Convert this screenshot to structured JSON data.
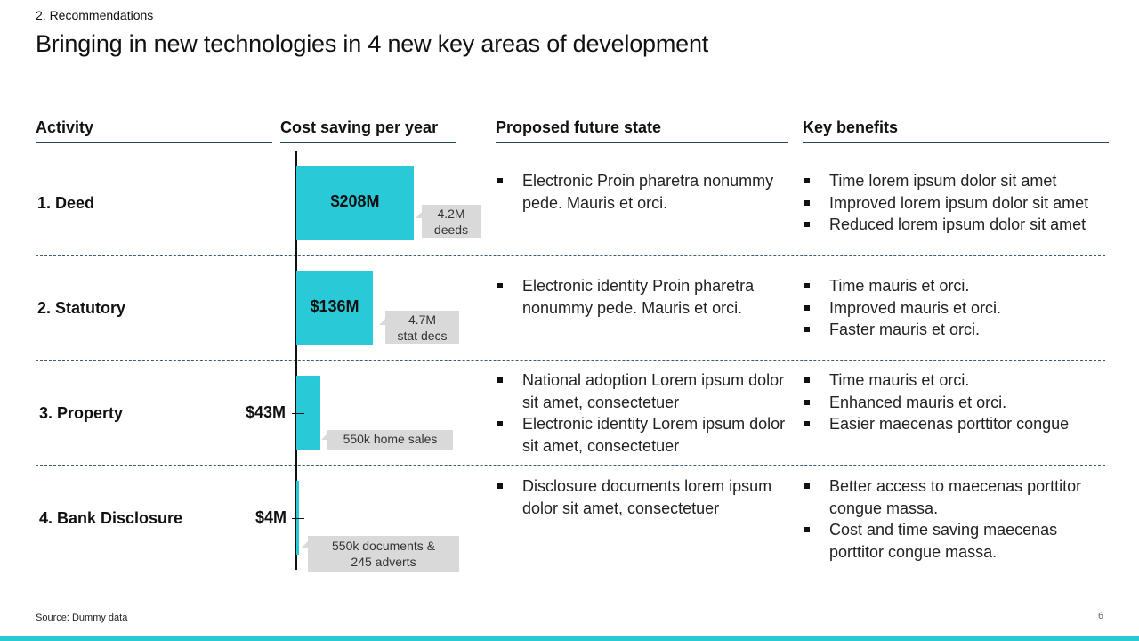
{
  "header": {
    "section": "2. Recommendations",
    "title": "Bringing in new technologies in 4 new key areas of development"
  },
  "columns": {
    "activity": "Activity",
    "cost": "Cost saving per year",
    "future": "Proposed future state",
    "benefits": "Key benefits"
  },
  "rows": [
    {
      "activity": "1. Deed",
      "cost_label": "$208M",
      "callout": [
        "4.2M",
        "deeds"
      ],
      "future": [
        "Electronic Proin pharetra nonummy pede. Mauris et orci."
      ],
      "benefits": [
        "Time lorem ipsum dolor sit amet",
        "Improved lorem ipsum dolor sit amet",
        "Reduced lorem ipsum dolor sit amet"
      ]
    },
    {
      "activity": "2. Statutory",
      "cost_label": "$136M",
      "callout": [
        "4.7M",
        "stat decs"
      ],
      "future": [
        "Electronic identity Proin pharetra nonummy pede. Mauris et orci."
      ],
      "benefits": [
        "Time mauris et orci.",
        "Improved mauris et orci.",
        "Faster mauris et orci."
      ]
    },
    {
      "activity": "3. Property",
      "cost_label": "$43M",
      "callout": [
        "550k home sales"
      ],
      "future": [
        "National adoption Lorem ipsum dolor sit amet, consectetuer",
        "Electronic identity Lorem ipsum dolor sit amet, consectetuer"
      ],
      "benefits": [
        "Time mauris et orci.",
        "Enhanced mauris et orci.",
        "Easier maecenas porttitor congue"
      ]
    },
    {
      "activity": "4. Bank Disclosure",
      "cost_label": "$4M",
      "callout": [
        "550k documents &",
        "245 adverts"
      ],
      "future": [
        "Disclosure documents lorem ipsum dolor sit amet, consectetuer"
      ],
      "benefits": [
        "Better access to maecenas porttitor congue massa.",
        "Cost and time saving maecenas porttitor congue massa."
      ]
    }
  ],
  "chart_data": {
    "type": "bar",
    "orientation": "horizontal",
    "categories": [
      "1. Deed",
      "2. Statutory",
      "3. Property",
      "4. Bank Disclosure"
    ],
    "values": [
      208,
      136,
      43,
      4
    ],
    "value_labels": [
      "$208M",
      "$136M",
      "$43M",
      "$4M"
    ],
    "xlim": [
      0,
      208
    ]
  },
  "colors": {
    "bar": "#29c9d7",
    "callout": "#d9d9d9",
    "rule": "#23465c"
  },
  "footer": {
    "source": "Source: Dummy data",
    "page": "6"
  }
}
